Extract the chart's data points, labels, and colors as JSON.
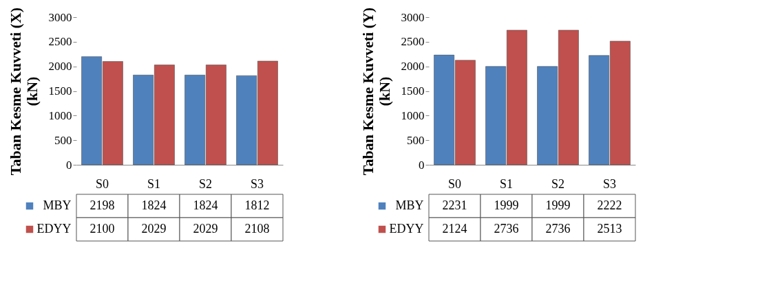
{
  "chart_data": [
    {
      "type": "bar",
      "ylabel": "Taban Kesme Kuvveti (X)\n(kN)",
      "categories": [
        "S0",
        "S1",
        "S2",
        "S3"
      ],
      "ylim": [
        0,
        3000
      ],
      "yticks": [
        0,
        500,
        1000,
        1500,
        2000,
        2500,
        3000
      ],
      "grid": false,
      "data_labels": true,
      "legend": "bottom",
      "series": [
        {
          "name": "MBY",
          "color": "#4f81bd",
          "values": [
            2198,
            1824,
            1824,
            1812
          ]
        },
        {
          "name": "EDYY",
          "color": "#c0504d",
          "values": [
            2100,
            2029,
            2029,
            2108
          ]
        }
      ]
    },
    {
      "type": "bar",
      "ylabel": "Taban Kesme Kuvveti (Y)\n(kN)",
      "categories": [
        "S0",
        "S1",
        "S2",
        "S3"
      ],
      "ylim": [
        0,
        3000
      ],
      "yticks": [
        0,
        500,
        1000,
        1500,
        2000,
        2500,
        3000
      ],
      "grid": false,
      "data_labels": true,
      "legend": "bottom",
      "series": [
        {
          "name": "MBY",
          "color": "#4f81bd",
          "values": [
            2231,
            1999,
            1999,
            2222
          ]
        },
        {
          "name": "EDYY",
          "color": "#c0504d",
          "values": [
            2124,
            2736,
            2736,
            2513
          ]
        }
      ]
    }
  ]
}
